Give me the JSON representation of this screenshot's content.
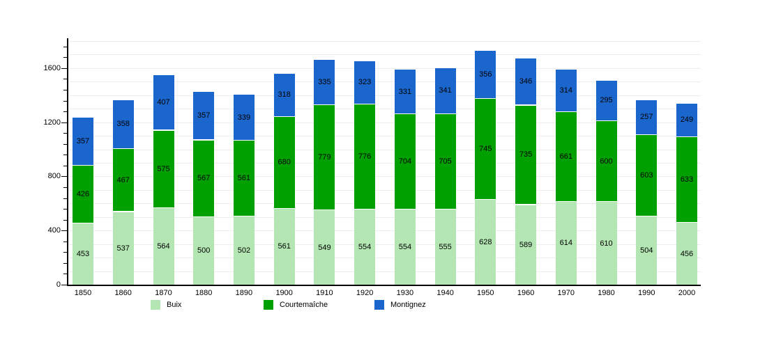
{
  "chart_data": {
    "type": "bar",
    "stacked": true,
    "title": "",
    "xlabel": "",
    "ylabel": "",
    "categories": [
      "1850",
      "1860",
      "1870",
      "1880",
      "1890",
      "1900",
      "1910",
      "1920",
      "1930",
      "1940",
      "1950",
      "1960",
      "1970",
      "1980",
      "1990",
      "2000"
    ],
    "series": [
      {
        "name": "Buix",
        "color": "#b3e6b3",
        "values": [
          453,
          537,
          564,
          500,
          502,
          561,
          549,
          554,
          554,
          555,
          628,
          589,
          614,
          610,
          504,
          456
        ]
      },
      {
        "name": "Courtemaîche",
        "color": "#00a000",
        "values": [
          426,
          467,
          575,
          567,
          561,
          680,
          779,
          776,
          704,
          705,
          745,
          735,
          661,
          600,
          603,
          633
        ]
      },
      {
        "name": "Montignez",
        "color": "#1a66cc",
        "values": [
          357,
          358,
          407,
          357,
          339,
          318,
          335,
          323,
          331,
          341,
          356,
          346,
          314,
          295,
          257,
          249
        ]
      }
    ],
    "ylim": [
      0,
      1810
    ],
    "yticks": [
      0,
      400,
      800,
      1200,
      1600
    ],
    "minor_tick_step": 80,
    "gridline_step": 100,
    "grid_on": true,
    "legend_position": "bottom",
    "value_labels_shown": true,
    "colors": {
      "axis": "#000000",
      "grid": "#ececec",
      "label_text": "#000000",
      "background": "#ffffff",
      "segment_separator": "#ffffff"
    }
  }
}
